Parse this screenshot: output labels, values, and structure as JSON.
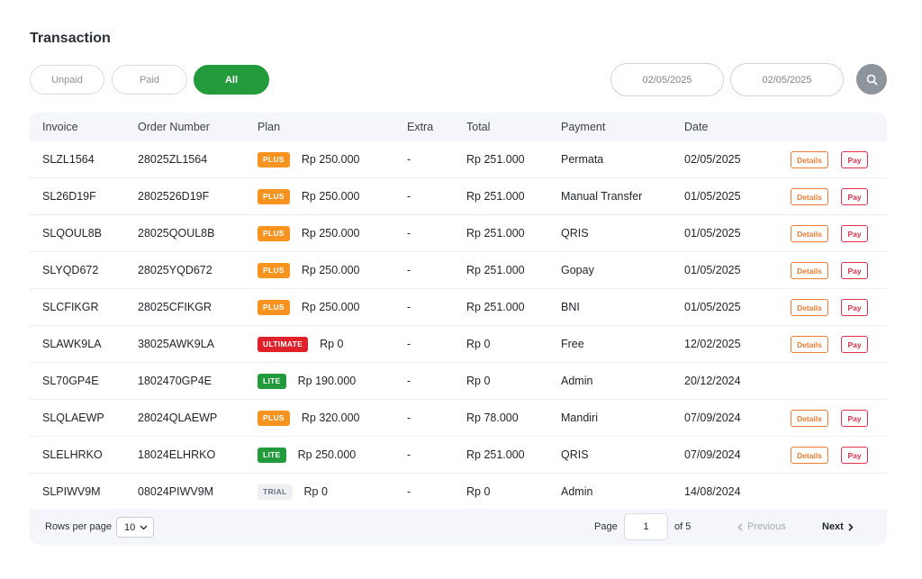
{
  "title": "Transaction",
  "filters": [
    {
      "label": "Unpaid",
      "active": false
    },
    {
      "label": "Paid",
      "active": false
    },
    {
      "label": "All",
      "active": true
    }
  ],
  "date_range": {
    "from": "02/05/2025",
    "to": "02/05/2025"
  },
  "icons": {
    "search": "search-icon",
    "dropdown": "chevron-down-icon",
    "prev": "chevron-left-icon",
    "next": "chevron-right-icon"
  },
  "colors": {
    "accent_green": "#239a3b",
    "plus": "#f7931e",
    "ultimate": "#e0202a",
    "lite": "#239a3b",
    "trial": "#eef0f3",
    "details": "#f07c34",
    "pay": "#e0314b"
  },
  "table": {
    "headers": {
      "invoice": "Invoice",
      "order_number": "Order Number",
      "plan": "Plan",
      "extra": "Extra",
      "total": "Total",
      "payment": "Payment",
      "date": "Date"
    },
    "action_labels": {
      "details": "Details",
      "pay": "Pay"
    },
    "rows": [
      {
        "invoice": "SLZL1564",
        "order_number": "28025ZL1564",
        "plan": "PLUS",
        "plan_price": "Rp 250.000",
        "extra": "-",
        "total": "Rp 251.000",
        "payment": "Permata",
        "date": "02/05/2025",
        "actions": true
      },
      {
        "invoice": "SL26D19F",
        "order_number": "2802526D19F",
        "plan": "PLUS",
        "plan_price": "Rp 250.000",
        "extra": "-",
        "total": "Rp 251.000",
        "payment": "Manual Transfer",
        "date": "01/05/2025",
        "actions": true
      },
      {
        "invoice": "SLQOUL8B",
        "order_number": "28025QOUL8B",
        "plan": "PLUS",
        "plan_price": "Rp 250.000",
        "extra": "-",
        "total": "Rp 251.000",
        "payment": "QRIS",
        "date": "01/05/2025",
        "actions": true
      },
      {
        "invoice": "SLYQD672",
        "order_number": "28025YQD672",
        "plan": "PLUS",
        "plan_price": "Rp 250.000",
        "extra": "-",
        "total": "Rp 251.000",
        "payment": "Gopay",
        "date": "01/05/2025",
        "actions": true
      },
      {
        "invoice": "SLCFIKGR",
        "order_number": "28025CFIKGR",
        "plan": "PLUS",
        "plan_price": "Rp 250.000",
        "extra": "-",
        "total": "Rp 251.000",
        "payment": "BNI",
        "date": "01/05/2025",
        "actions": true
      },
      {
        "invoice": "SLAWK9LA",
        "order_number": "38025AWK9LA",
        "plan": "ULTIMATE",
        "plan_price": "Rp 0",
        "extra": "-",
        "total": "Rp 0",
        "payment": "Free",
        "date": "12/02/2025",
        "actions": true
      },
      {
        "invoice": "SL70GP4E",
        "order_number": "1802470GP4E",
        "plan": "LITE",
        "plan_price": "Rp 190.000",
        "extra": "-",
        "total": "Rp 0",
        "payment": "Admin",
        "date": "20/12/2024",
        "actions": false
      },
      {
        "invoice": "SLQLAEWP",
        "order_number": "28024QLAEWP",
        "plan": "PLUS",
        "plan_price": "Rp 320.000",
        "extra": "-",
        "total": "Rp 78.000",
        "payment": "Mandiri",
        "date": "07/09/2024",
        "actions": true
      },
      {
        "invoice": "SLELHRKO",
        "order_number": "18024ELHRKO",
        "plan": "LITE",
        "plan_price": "Rp 250.000",
        "extra": "-",
        "total": "Rp 251.000",
        "payment": "QRIS",
        "date": "07/09/2024",
        "actions": true
      },
      {
        "invoice": "SLPIWV9M",
        "order_number": "08024PIWV9M",
        "plan": "TRIAL",
        "plan_price": "Rp 0",
        "extra": "-",
        "total": "Rp 0",
        "payment": "Admin",
        "date": "14/08/2024",
        "actions": false
      }
    ]
  },
  "pagination": {
    "rows_per_page_label": "Rows per page",
    "rows_per_page": "10",
    "page_label": "Page",
    "current_page": "1",
    "of_label": "of 5",
    "previous_label": "Previous",
    "next_label": "Next"
  }
}
